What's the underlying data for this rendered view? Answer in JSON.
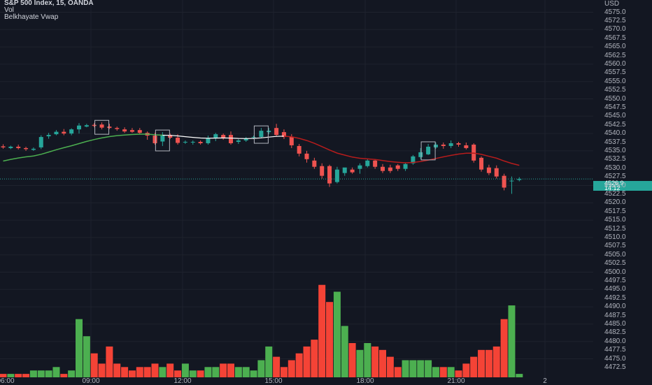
{
  "legend": {
    "symbol_line": "S&P 500 Index, 15, OANDA",
    "volume": "Vol",
    "indicator": "Belkhayate Vwap"
  },
  "axis": {
    "currency": "USD",
    "current_price": "4526.9",
    "countdown": "14:12",
    "price_ticks": [
      "4575.0",
      "4572.5",
      "4570.0",
      "4567.5",
      "4565.0",
      "4562.5",
      "4560.0",
      "4557.5",
      "4555.0",
      "4552.5",
      "4550.0",
      "4547.5",
      "4545.0",
      "4542.5",
      "4540.0",
      "4537.5",
      "4535.0",
      "4532.5",
      "4530.0",
      "4527.5",
      "4525.0",
      "4522.5",
      "4520.0",
      "4517.5",
      "4515.0",
      "4512.5",
      "4510.0",
      "4507.5",
      "4505.0",
      "4502.5",
      "4500.0",
      "4497.5",
      "4495.0",
      "4492.5",
      "4490.0",
      "4487.5",
      "4485.0",
      "4482.5",
      "4480.0",
      "4477.5",
      "4475.0",
      "4472.5"
    ],
    "time_labels": [
      "06:00",
      "09:00",
      "12:00",
      "15:00",
      "18:00",
      "21:00",
      "2"
    ]
  },
  "colors": {
    "bg": "#131722",
    "up": "#26a69a",
    "down": "#ef5350",
    "vol_up": "#4caf50",
    "vol_down": "#f44336",
    "vwap_up": "#4caf50",
    "vwap_mid": "#ffffff",
    "vwap_down": "#b71c1c",
    "grid": "#1e222d",
    "current_price": "#26a69a"
  },
  "chart_data": {
    "type": "candlestick",
    "symbol": "S&P 500 Index",
    "interval": "15",
    "source": "OANDA",
    "ylim": [
      4472.5,
      4576.0
    ],
    "candles": [
      {
        "o": 4536.3,
        "h": 4536.9,
        "c": 4536.0,
        "l": 4535.6,
        "v": 1
      },
      {
        "o": 4535.8,
        "h": 4536.5,
        "c": 4536.2,
        "l": 4535.5,
        "v": 1
      },
      {
        "o": 4536.2,
        "h": 4536.8,
        "c": 4535.8,
        "l": 4535.4,
        "v": 1
      },
      {
        "o": 4535.8,
        "h": 4536.2,
        "c": 4535.5,
        "l": 4535.0,
        "v": 1
      },
      {
        "o": 4535.3,
        "h": 4536.0,
        "c": 4535.6,
        "l": 4535.0,
        "v": 2
      },
      {
        "o": 4536.0,
        "h": 4539.5,
        "c": 4539.0,
        "l": 4535.5,
        "v": 2
      },
      {
        "o": 4539.2,
        "h": 4540.2,
        "c": 4539.6,
        "l": 4538.5,
        "v": 2
      },
      {
        "o": 4539.8,
        "h": 4541.0,
        "c": 4540.5,
        "l": 4539.5,
        "v": 3
      },
      {
        "o": 4540.5,
        "h": 4541.3,
        "c": 4540.0,
        "l": 4539.5,
        "v": 1
      },
      {
        "o": 4540.0,
        "h": 4541.5,
        "c": 4541.2,
        "l": 4539.5,
        "v": 2
      },
      {
        "o": 4541.2,
        "h": 4543.0,
        "c": 4542.3,
        "l": 4540.0,
        "v": 17
      },
      {
        "o": 4542.0,
        "h": 4542.8,
        "c": 4542.4,
        "l": 4541.8,
        "v": 12
      },
      {
        "o": 4542.5,
        "h": 4543.0,
        "c": 4542.2,
        "l": 4541.8,
        "v": 7
      },
      {
        "o": 4542.6,
        "h": 4543.2,
        "c": 4541.7,
        "l": 4541.2,
        "v": 4
      },
      {
        "o": 4542.0,
        "h": 4542.8,
        "c": 4541.6,
        "l": 4541.3,
        "v": 9
      },
      {
        "o": 4541.6,
        "h": 4542.0,
        "c": 4541.3,
        "l": 4540.8,
        "v": 4
      },
      {
        "o": 4541.2,
        "h": 4541.8,
        "c": 4540.6,
        "l": 4540.2,
        "v": 3
      },
      {
        "o": 4541.0,
        "h": 4541.6,
        "c": 4540.5,
        "l": 4540.2,
        "v": 2
      },
      {
        "o": 4541.0,
        "h": 4541.6,
        "c": 4540.2,
        "l": 4539.8,
        "v": 3
      },
      {
        "o": 4540.2,
        "h": 4540.6,
        "c": 4539.4,
        "l": 4538.2,
        "v": 3
      },
      {
        "o": 4539.4,
        "h": 4540.2,
        "c": 4537.2,
        "l": 4536.8,
        "v": 4
      },
      {
        "o": 4537.7,
        "h": 4540.4,
        "c": 4539.6,
        "l": 4536.4,
        "v": 3
      },
      {
        "o": 4539.6,
        "h": 4540.0,
        "c": 4538.8,
        "l": 4538.4,
        "v": 4
      },
      {
        "o": 4538.8,
        "h": 4539.8,
        "c": 4537.3,
        "l": 4536.8,
        "v": 2
      },
      {
        "o": 4537.4,
        "h": 4538.0,
        "c": 4537.6,
        "l": 4537.0,
        "v": 4
      },
      {
        "o": 4537.4,
        "h": 4538.0,
        "c": 4537.6,
        "l": 4536.8,
        "v": 2
      },
      {
        "o": 4537.6,
        "h": 4538.0,
        "c": 4537.2,
        "l": 4536.8,
        "v": 2
      },
      {
        "o": 4537.2,
        "h": 4539.4,
        "c": 4538.6,
        "l": 4536.8,
        "v": 3
      },
      {
        "o": 4538.6,
        "h": 4540.2,
        "c": 4539.8,
        "l": 4537.8,
        "v": 3
      },
      {
        "o": 4539.6,
        "h": 4540.0,
        "c": 4538.6,
        "l": 4538.2,
        "v": 4
      },
      {
        "o": 4539.6,
        "h": 4540.6,
        "c": 4537.2,
        "l": 4536.8,
        "v": 4
      },
      {
        "o": 4537.6,
        "h": 4538.4,
        "c": 4538.0,
        "l": 4537.0,
        "v": 3
      },
      {
        "o": 4538.0,
        "h": 4539.0,
        "c": 4538.6,
        "l": 4537.6,
        "v": 3
      },
      {
        "o": 4538.8,
        "h": 4539.4,
        "c": 4539.0,
        "l": 4538.4,
        "v": 2
      },
      {
        "o": 4539.0,
        "h": 4541.6,
        "c": 4540.8,
        "l": 4538.6,
        "v": 5
      },
      {
        "o": 4540.4,
        "h": 4541.6,
        "c": 4540.8,
        "l": 4539.8,
        "v": 9
      },
      {
        "o": 4541.6,
        "h": 4542.8,
        "c": 4539.6,
        "l": 4539.2,
        "v": 6
      },
      {
        "o": 4540.4,
        "h": 4541.2,
        "c": 4539.0,
        "l": 4538.4,
        "v": 3
      },
      {
        "o": 4539.0,
        "h": 4539.8,
        "c": 4536.6,
        "l": 4535.8,
        "v": 5
      },
      {
        "o": 4536.4,
        "h": 4537.0,
        "c": 4534.2,
        "l": 4533.4,
        "v": 7
      },
      {
        "o": 4534.2,
        "h": 4535.0,
        "c": 4532.6,
        "l": 4531.6,
        "v": 9
      },
      {
        "o": 4532.2,
        "h": 4533.0,
        "c": 4530.4,
        "l": 4529.8,
        "v": 11
      },
      {
        "o": 4530.6,
        "h": 4531.4,
        "c": 4527.8,
        "l": 4527.0,
        "v": 27
      },
      {
        "o": 4530.6,
        "h": 4531.0,
        "c": 4525.6,
        "l": 4524.6,
        "v": 22
      },
      {
        "o": 4526.0,
        "h": 4530.4,
        "c": 4529.6,
        "l": 4525.6,
        "v": 25
      },
      {
        "o": 4528.6,
        "h": 4529.6,
        "c": 4530.2,
        "l": 4527.8,
        "v": 15
      },
      {
        "o": 4529.6,
        "h": 4530.2,
        "c": 4528.8,
        "l": 4528.4,
        "v": 10
      },
      {
        "o": 4529.8,
        "h": 4531.4,
        "c": 4530.8,
        "l": 4528.4,
        "v": 8
      },
      {
        "o": 4530.6,
        "h": 4532.6,
        "c": 4532.2,
        "l": 4530.2,
        "v": 10
      },
      {
        "o": 4532.2,
        "h": 4532.6,
        "c": 4530.4,
        "l": 4529.8,
        "v": 9
      },
      {
        "o": 4530.4,
        "h": 4531.2,
        "c": 4529.2,
        "l": 4528.6,
        "v": 8
      },
      {
        "o": 4530.2,
        "h": 4531.0,
        "c": 4529.2,
        "l": 4528.6,
        "v": 6
      },
      {
        "o": 4530.8,
        "h": 4531.2,
        "c": 4529.8,
        "l": 4529.2,
        "v": 3
      },
      {
        "o": 4529.8,
        "h": 4531.6,
        "c": 4531.2,
        "l": 4529.2,
        "v": 5
      },
      {
        "o": 4531.4,
        "h": 4533.8,
        "c": 4533.4,
        "l": 4531.0,
        "v": 5
      },
      {
        "o": 4533.2,
        "h": 4535.8,
        "c": 4534.6,
        "l": 4532.6,
        "v": 5
      },
      {
        "o": 4534.0,
        "h": 4537.0,
        "c": 4536.2,
        "l": 4533.8,
        "v": 5
      },
      {
        "o": 4536.0,
        "h": 4537.4,
        "c": 4536.8,
        "l": 4535.6,
        "v": 3
      },
      {
        "o": 4536.8,
        "h": 4537.4,
        "c": 4536.4,
        "l": 4535.6,
        "v": 3
      },
      {
        "o": 4536.4,
        "h": 4538.0,
        "c": 4537.2,
        "l": 4535.8,
        "v": 3
      },
      {
        "o": 4537.2,
        "h": 4537.6,
        "c": 4536.8,
        "l": 4536.2,
        "v": 2
      },
      {
        "o": 4536.6,
        "h": 4537.4,
        "c": 4535.8,
        "l": 4535.4,
        "v": 4
      },
      {
        "o": 4536.8,
        "h": 4537.2,
        "c": 4532.2,
        "l": 4531.6,
        "v": 6
      },
      {
        "o": 4533.0,
        "h": 4533.4,
        "c": 4529.6,
        "l": 4529.0,
        "v": 8
      },
      {
        "o": 4530.2,
        "h": 4531.0,
        "c": 4528.6,
        "l": 4528.0,
        "v": 8
      },
      {
        "o": 4530.0,
        "h": 4530.8,
        "c": 4527.6,
        "l": 4527.0,
        "v": 9
      },
      {
        "o": 4527.8,
        "h": 4528.4,
        "c": 4524.4,
        "l": 4523.6,
        "v": 17
      },
      {
        "o": 4526.2,
        "h": 4527.6,
        "c": 4526.4,
        "l": 4522.6,
        "v": 21
      },
      {
        "o": 4526.6,
        "h": 4527.4,
        "c": 4526.9,
        "l": 4526.2,
        "v": 1
      }
    ]
  }
}
